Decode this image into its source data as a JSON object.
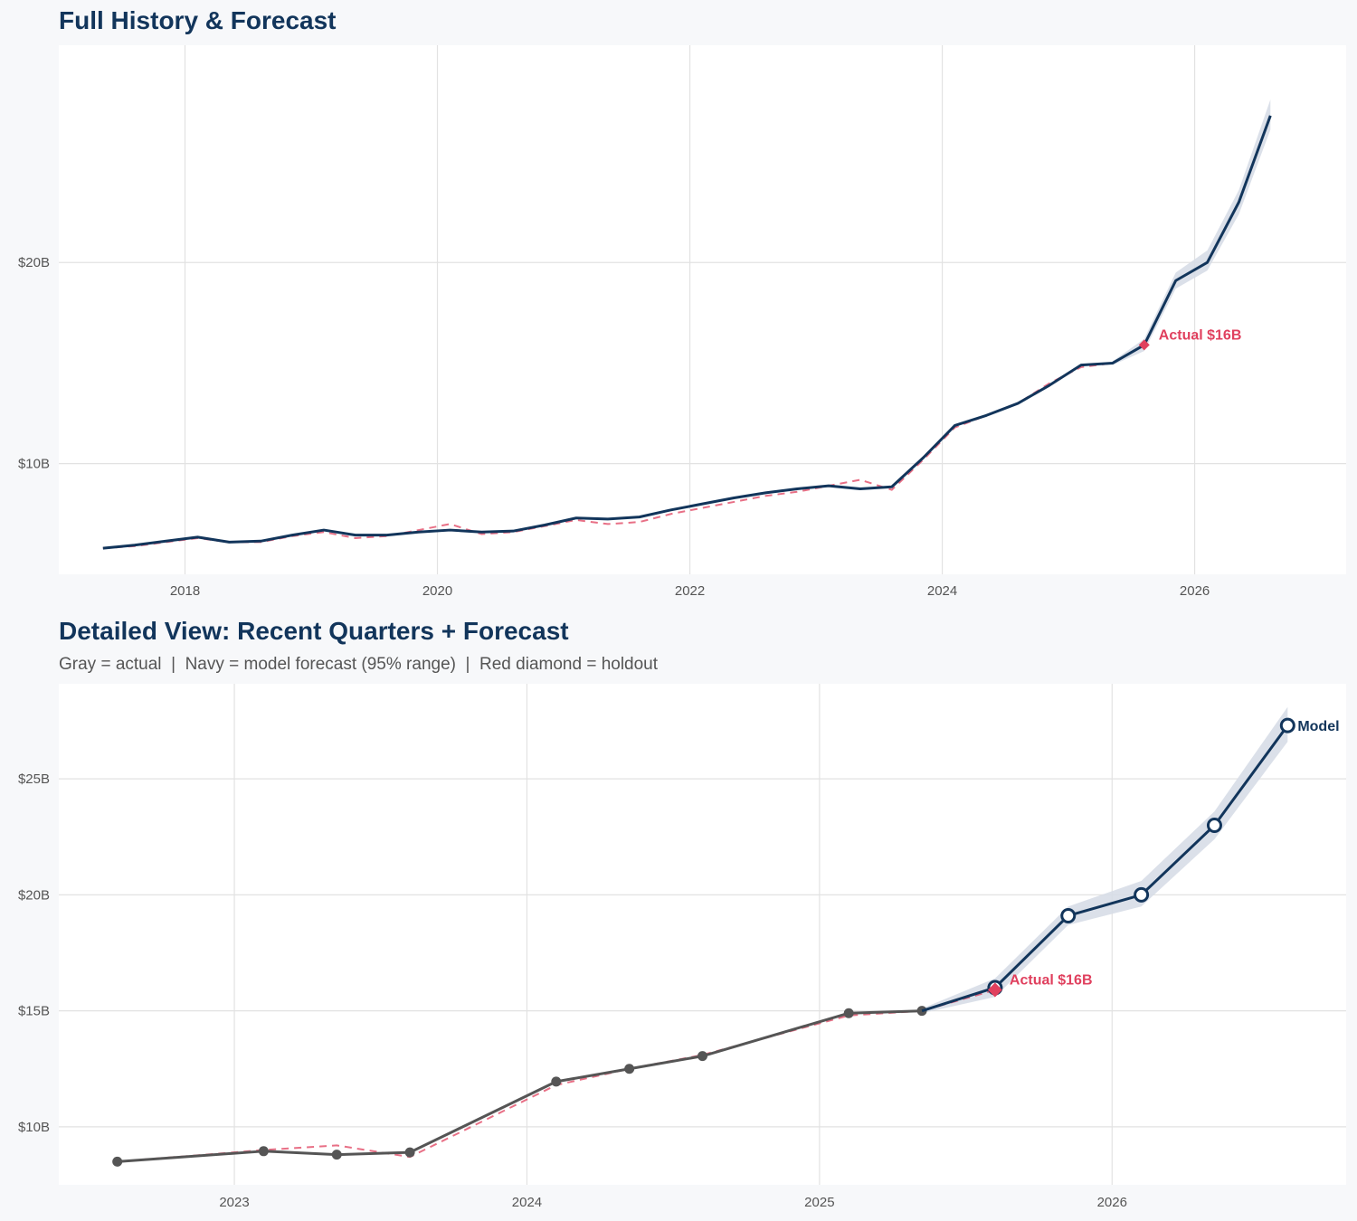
{
  "colors": {
    "navy": "#12355b",
    "gray": "#555555",
    "red": "#e0405e",
    "band": "#d7dde7"
  },
  "chart_data": [
    {
      "type": "line",
      "title": "Full History & Forecast",
      "subtitle": "",
      "xlim": [
        2017.0,
        2027.2
      ],
      "ylim": [
        4.5,
        30.8
      ],
      "x_ticks": [
        2018,
        2020,
        2022,
        2024,
        2026
      ],
      "x_tick_labels": [
        "2018",
        "2020",
        "2022",
        "2024",
        "2026"
      ],
      "y_ticks": [
        10,
        20
      ],
      "y_tick_labels": [
        "$10B",
        "$20B"
      ],
      "series": [
        {
          "name": "actual",
          "style": "dashed",
          "x": [
            2017.35,
            2017.6,
            2017.85,
            2018.1,
            2018.35,
            2018.6,
            2018.85,
            2019.1,
            2019.35,
            2019.6,
            2019.85,
            2020.1,
            2020.35,
            2020.6,
            2020.85,
            2021.1,
            2021.35,
            2021.6,
            2021.85,
            2022.1,
            2022.35,
            2022.6,
            2022.85,
            2023.1,
            2023.35,
            2023.6,
            2023.85,
            2024.1,
            2024.35,
            2024.6,
            2024.85,
            2025.1,
            2025.35,
            2025.6
          ],
          "values": [
            5.8,
            5.9,
            6.1,
            6.3,
            6.1,
            6.1,
            6.4,
            6.6,
            6.3,
            6.4,
            6.7,
            7.0,
            6.5,
            6.6,
            6.9,
            7.2,
            7.0,
            7.1,
            7.5,
            7.8,
            8.1,
            8.4,
            8.6,
            8.9,
            9.2,
            8.7,
            10.2,
            11.8,
            12.4,
            13.0,
            14.0,
            14.8,
            15.0,
            15.9
          ]
        },
        {
          "name": "model forecast",
          "style": "solid",
          "x": [
            2017.35,
            2017.6,
            2017.85,
            2018.1,
            2018.35,
            2018.6,
            2018.85,
            2019.1,
            2019.35,
            2019.6,
            2019.85,
            2020.1,
            2020.35,
            2020.6,
            2020.85,
            2021.1,
            2021.35,
            2021.6,
            2021.85,
            2022.1,
            2022.35,
            2022.6,
            2022.85,
            2023.1,
            2023.35,
            2023.6,
            2023.85,
            2024.1,
            2024.35,
            2024.6,
            2024.85,
            2025.1,
            2025.35,
            2025.6,
            2025.85,
            2026.1,
            2026.35,
            2026.6
          ],
          "values": [
            5.8,
            5.95,
            6.15,
            6.35,
            6.1,
            6.15,
            6.45,
            6.7,
            6.45,
            6.45,
            6.6,
            6.7,
            6.6,
            6.65,
            6.95,
            7.3,
            7.25,
            7.35,
            7.7,
            8.0,
            8.3,
            8.55,
            8.75,
            8.9,
            8.75,
            8.85,
            10.3,
            11.9,
            12.4,
            13.0,
            13.9,
            14.9,
            15.0,
            15.9,
            19.1,
            20.0,
            23.0,
            27.3
          ]
        }
      ],
      "band": {
        "x": [
          2025.35,
          2025.6,
          2025.85,
          2026.1,
          2026.35,
          2026.6
        ],
        "lower": [
          14.9,
          15.6,
          18.7,
          19.6,
          22.4,
          26.6
        ],
        "upper": [
          15.1,
          16.2,
          19.5,
          20.6,
          23.6,
          28.1
        ]
      },
      "holdout": {
        "x": 2025.6,
        "value": 15.9,
        "label": "Actual $16B"
      }
    },
    {
      "type": "line",
      "title": "Detailed View: Recent Quarters + Forecast",
      "subtitle": "Gray = actual  |  Navy = model forecast (95% range)  |  Red diamond = holdout",
      "xlim": [
        2022.4,
        2026.8
      ],
      "ylim": [
        7.5,
        29.1
      ],
      "x_ticks": [
        2023,
        2024,
        2025,
        2026
      ],
      "x_tick_labels": [
        "2023",
        "2024",
        "2025",
        "2026"
      ],
      "y_ticks": [
        10,
        15,
        20,
        25
      ],
      "y_tick_labels": [
        "$10B",
        "$15B",
        "$20B",
        "$25B"
      ],
      "series": [
        {
          "name": "actual (dashed)",
          "style": "dashed",
          "x": [
            2022.6,
            2023.1,
            2023.35,
            2023.6,
            2024.1,
            2024.35,
            2024.6,
            2025.1,
            2025.35,
            2025.6
          ],
          "values": [
            8.5,
            9.0,
            9.2,
            8.7,
            11.8,
            12.5,
            13.1,
            14.8,
            15.0,
            15.9
          ]
        },
        {
          "name": "actual",
          "style": "solid-markers",
          "x": [
            2022.6,
            2023.1,
            2023.35,
            2023.6,
            2024.1,
            2024.35,
            2024.6,
            2025.1,
            2025.35
          ],
          "values": [
            8.5,
            8.95,
            8.8,
            8.9,
            11.95,
            12.5,
            13.05,
            14.9,
            15.0
          ]
        },
        {
          "name": "model forecast",
          "style": "solid-open-markers",
          "x": [
            2025.35,
            2025.6,
            2025.85,
            2026.1,
            2026.35,
            2026.6
          ],
          "values": [
            15.0,
            16.0,
            19.1,
            20.0,
            23.0,
            27.3
          ]
        }
      ],
      "band": {
        "x": [
          2025.35,
          2025.6,
          2025.85,
          2026.1,
          2026.35,
          2026.6
        ],
        "lower": [
          14.9,
          15.6,
          18.7,
          19.5,
          22.4,
          26.6
        ],
        "upper": [
          15.1,
          16.4,
          19.5,
          20.6,
          23.6,
          28.1
        ]
      },
      "holdout": {
        "x": 2025.6,
        "value": 15.9,
        "label": "Actual $16B"
      },
      "end_label": "Model"
    }
  ]
}
